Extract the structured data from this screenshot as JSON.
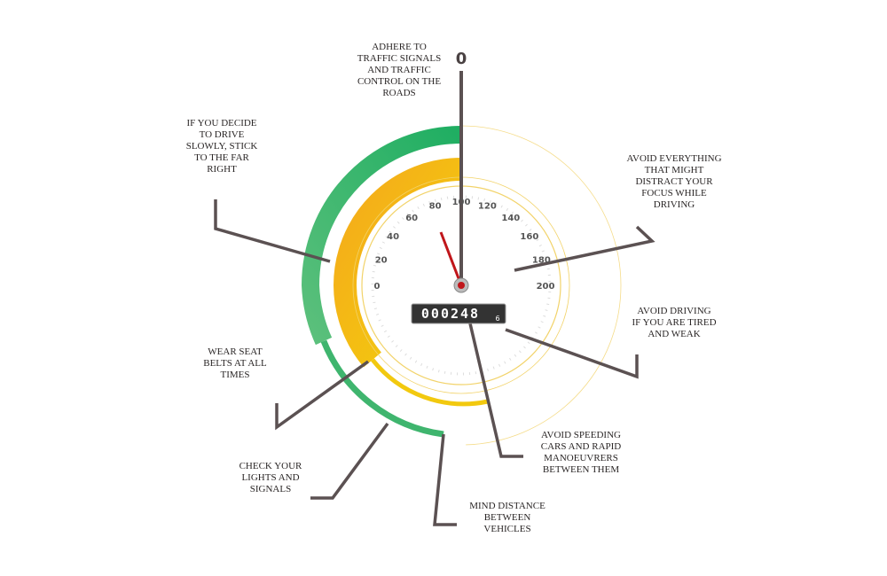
{
  "top_mark": "0",
  "tips": [
    {
      "lines": [
        "ADHERE TO",
        "TRAFFIC SIGNALS",
        "AND TRAFFIC",
        "CONTROL ON THE",
        "ROADS"
      ]
    },
    {
      "lines": [
        "IF YOU DECIDE",
        "TO DRIVE",
        "SLOWLY, STICK",
        "TO THE FAR",
        "RIGHT"
      ]
    },
    {
      "lines": [
        "AVOID EVERYTHING",
        "THAT MIGHT",
        "DISTRACT YOUR",
        "FOCUS WHILE",
        "DRIVING"
      ]
    },
    {
      "lines": [
        "AVOID DRIVING",
        "IF YOU ARE TIRED",
        "AND WEAK"
      ]
    },
    {
      "lines": [
        "WEAR SEAT",
        "BELTS AT ALL",
        "TIMES"
      ]
    },
    {
      "lines": [
        "AVOID SPEEDING",
        "CARS AND RAPID",
        "MANOEUVRERS",
        "BETWEEN THEM"
      ]
    },
    {
      "lines": [
        "CHECK YOUR",
        "LIGHTS AND",
        "SIGNALS"
      ]
    },
    {
      "lines": [
        "MIND DISTANCE",
        "BETWEEN",
        "VEHICLES"
      ]
    }
  ],
  "gauge": {
    "ticks": [
      0,
      20,
      40,
      60,
      80,
      100,
      120,
      140,
      160,
      180,
      200
    ],
    "odometer": "000248",
    "odometer_fraction": "6"
  }
}
